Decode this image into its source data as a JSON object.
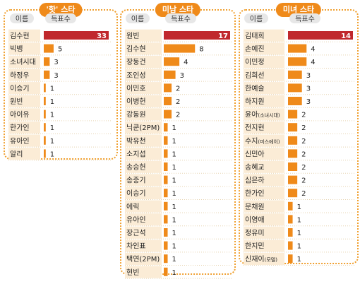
{
  "chart_data": [
    {
      "type": "bar",
      "title": "'핫' 스타",
      "name_header": "이름",
      "value_header": "득표수",
      "categories": [
        "김수현",
        "빅뱅",
        "소녀시대",
        "하정우",
        "이승기",
        "원빈",
        "아이유",
        "한가인",
        "유아인",
        "알리"
      ],
      "values": [
        33,
        5,
        3,
        3,
        1,
        1,
        1,
        1,
        1,
        1
      ],
      "max": 33
    },
    {
      "type": "bar",
      "title": "미남 스타",
      "name_header": "이름",
      "value_header": "득표수",
      "categories": [
        "원빈",
        "김수현",
        "장동건",
        "조인성",
        "이민호",
        "이병헌",
        "강동원",
        "닉쿤(2PM)",
        "박유천",
        "소지섭",
        "송승헌",
        "송중기",
        "이승기",
        "에릭",
        "유아인",
        "장근석",
        "차인표",
        "택연(2PM)",
        "현빈"
      ],
      "values": [
        17,
        8,
        4,
        3,
        2,
        2,
        2,
        1,
        1,
        1,
        1,
        1,
        1,
        1,
        1,
        1,
        1,
        1,
        1
      ],
      "max": 17
    },
    {
      "type": "bar",
      "title": "미녀 스타",
      "name_header": "이름",
      "value_header": "득표수",
      "categories": [
        "김태희",
        "손예진",
        "이민정",
        "김희선",
        "한예슬",
        "하지원",
        "윤아(소녀시대)",
        "전지현",
        "수지(미스에이)",
        "신민아",
        "송혜교",
        "심은하",
        "한가인",
        "문채원",
        "이영애",
        "정유미",
        "한지민",
        "신재이(모델)"
      ],
      "values": [
        14,
        4,
        4,
        3,
        3,
        3,
        2,
        2,
        2,
        2,
        2,
        2,
        2,
        1,
        1,
        1,
        1,
        1
      ],
      "max": 14
    }
  ],
  "colors": {
    "top_bar": "#c0282d",
    "bar": "#ef8a1a",
    "panel_border": "#f0a030",
    "title_bg": "#ef8a1a",
    "name_bg": "#fbecd6"
  }
}
